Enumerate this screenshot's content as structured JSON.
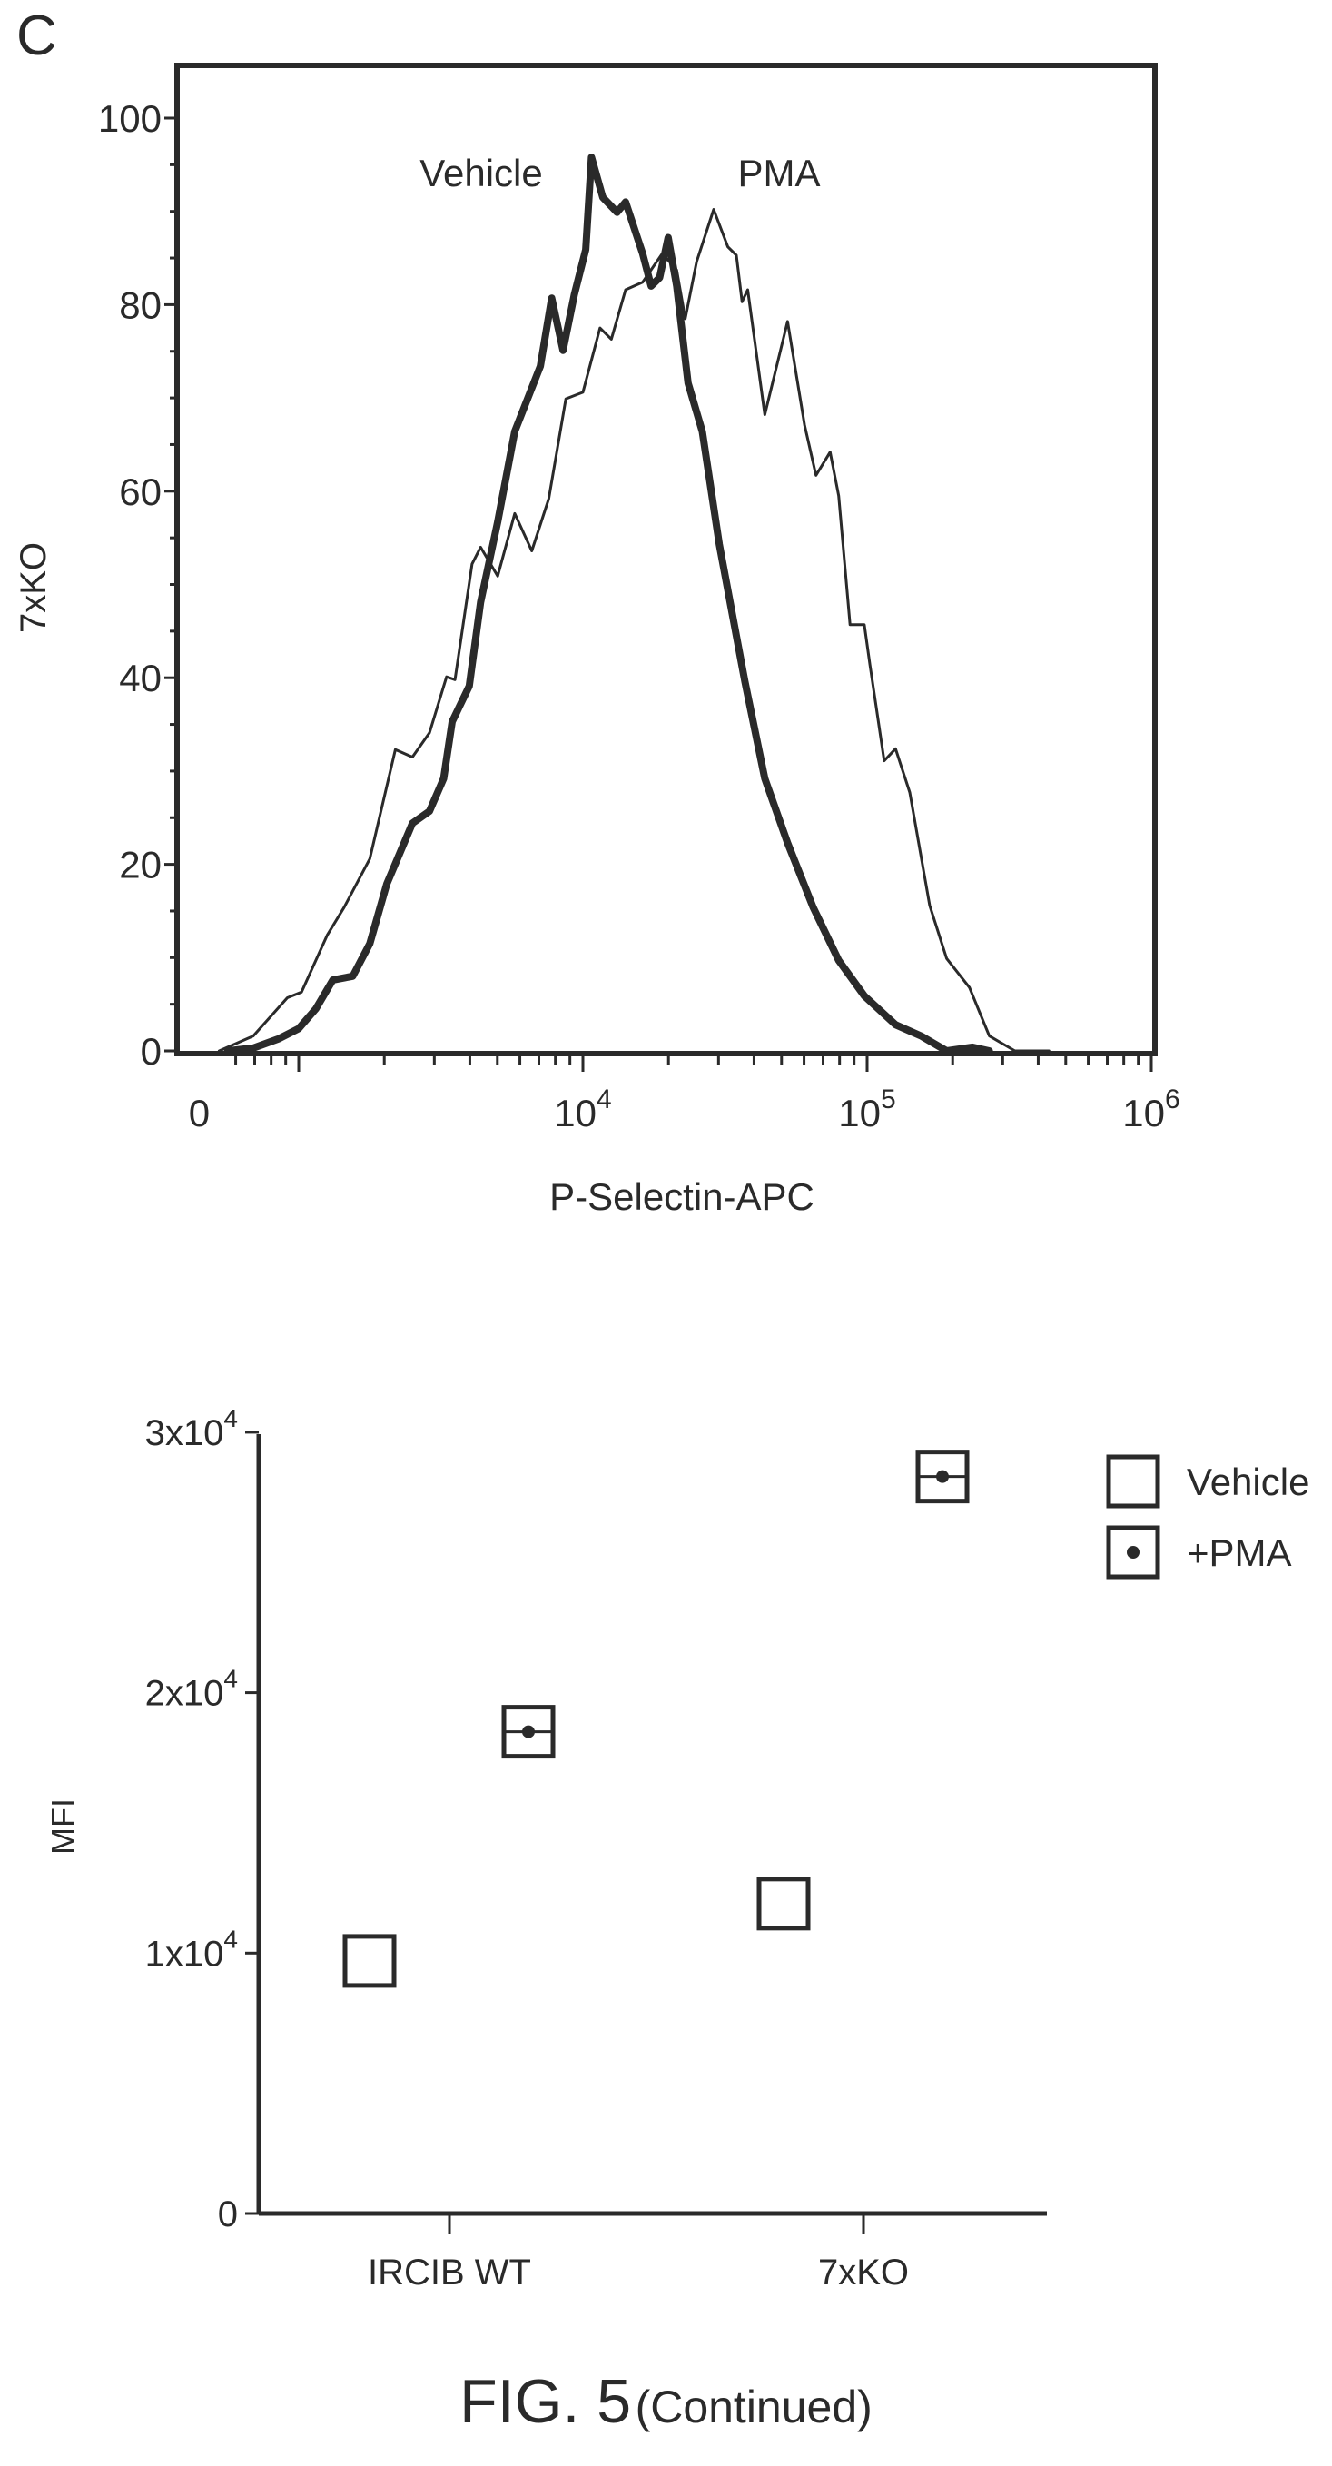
{
  "panel_letter": "C",
  "figure_caption": {
    "main": "FIG. 5",
    "suffix": "(Continued)"
  },
  "colors": {
    "ink": "#2a2a2a",
    "background": "#ffffff"
  },
  "chart_data": [
    {
      "type": "line",
      "title": "",
      "xlabel": "P-Selectin-APC",
      "ylabel": "7xKO",
      "x_scale": "log10 (biexponential, 0 at left)",
      "xlim_log10": [
        2.6,
        6.05
      ],
      "ylim": [
        0,
        105
      ],
      "y_ticks": [
        0,
        20,
        40,
        60,
        80,
        100
      ],
      "x_ticks": [
        {
          "label": "0",
          "exp": "",
          "log10": 2.65
        },
        {
          "label": "10",
          "exp": "4",
          "log10": 4
        },
        {
          "label": "10",
          "exp": "5",
          "log10": 5
        },
        {
          "label": "10",
          "exp": "6",
          "log10": 6
        }
      ],
      "annotations": [
        "Vehicle",
        "PMA"
      ],
      "series": [
        {
          "name": "Vehicle",
          "style": "thick",
          "x_log10": [
            2.75,
            2.84,
            2.93,
            3.0,
            3.06,
            3.12,
            3.19,
            3.25,
            3.31,
            3.4,
            3.46,
            3.51,
            3.54,
            3.6,
            3.64,
            3.7,
            3.76,
            3.85,
            3.89,
            3.93,
            3.97,
            4.01,
            4.03,
            4.07,
            4.12,
            4.15,
            4.21,
            4.24,
            4.27,
            4.3,
            4.33,
            4.37,
            4.42,
            4.48,
            4.57,
            4.64,
            4.72,
            4.81,
            4.9,
            4.99,
            5.1,
            5.19,
            5.28,
            5.37,
            5.43
          ],
          "y": [
            0,
            0.3,
            1.3,
            2.4,
            4.5,
            7.6,
            8.0,
            11.5,
            17.9,
            24.4,
            25.7,
            29.2,
            35.3,
            39.1,
            48.1,
            56.7,
            66.4,
            73.4,
            80.7,
            75.1,
            81.1,
            85.9,
            95.8,
            91.5,
            89.9,
            91.0,
            85.5,
            82.0,
            82.9,
            87.2,
            82.0,
            71.6,
            66.4,
            54.3,
            39.6,
            29.2,
            22.3,
            15.4,
            9.7,
            5.9,
            2.8,
            1.6,
            0,
            0.4,
            0
          ]
        },
        {
          "name": "PMA",
          "style": "thin",
          "x_log10": [
            2.72,
            2.84,
            2.96,
            3.01,
            3.1,
            3.16,
            3.25,
            3.34,
            3.4,
            3.46,
            3.52,
            3.55,
            3.61,
            3.64,
            3.7,
            3.76,
            3.82,
            3.88,
            3.94,
            4.0,
            4.06,
            4.1,
            4.15,
            4.21,
            4.28,
            4.33,
            4.36,
            4.4,
            4.46,
            4.51,
            4.54,
            4.56,
            4.58,
            4.64,
            4.72,
            4.78,
            4.82,
            4.87,
            4.9,
            4.94,
            4.99,
            5.01,
            5.06,
            5.1,
            5.15,
            5.22,
            5.28,
            5.36,
            5.43,
            5.52,
            5.64
          ],
          "y": [
            0,
            1.6,
            5.7,
            6.3,
            12.4,
            15.4,
            20.6,
            32.3,
            31.5,
            34.1,
            40.1,
            39.8,
            52.2,
            54.0,
            50.9,
            57.6,
            53.6,
            59.2,
            69.9,
            70.6,
            77.5,
            76.3,
            81.6,
            82.4,
            85.5,
            83.7,
            78.5,
            84.6,
            90.2,
            86.2,
            85.3,
            80.3,
            81.6,
            68.2,
            78.2,
            67.1,
            61.7,
            64.2,
            59.5,
            45.7,
            45.7,
            41.4,
            31.1,
            32.4,
            27.7,
            15.6,
            9.9,
            6.8,
            1.6,
            0,
            0
          ]
        }
      ]
    },
    {
      "type": "scatter",
      "title": "",
      "xlabel": "",
      "ylabel": "MFI",
      "categories": [
        "IRCIB WT",
        "7xKO"
      ],
      "ylim": [
        0,
        30000
      ],
      "y_ticks": [
        {
          "value": 0,
          "label": "0",
          "exp": ""
        },
        {
          "value": 10000,
          "label": "1x10",
          "exp": "4"
        },
        {
          "value": 20000,
          "label": "2x10",
          "exp": "4"
        },
        {
          "value": 30000,
          "label": "3x10",
          "exp": "4"
        }
      ],
      "legend": {
        "placement": "top-right",
        "entries": [
          "Vehicle",
          "+PMA"
        ]
      },
      "series": [
        {
          "name": "Vehicle",
          "marker": "open-square",
          "values": [
            9700,
            11900
          ]
        },
        {
          "name": "+PMA",
          "marker": "square-dot",
          "values": [
            18500,
            28300
          ]
        }
      ]
    }
  ]
}
